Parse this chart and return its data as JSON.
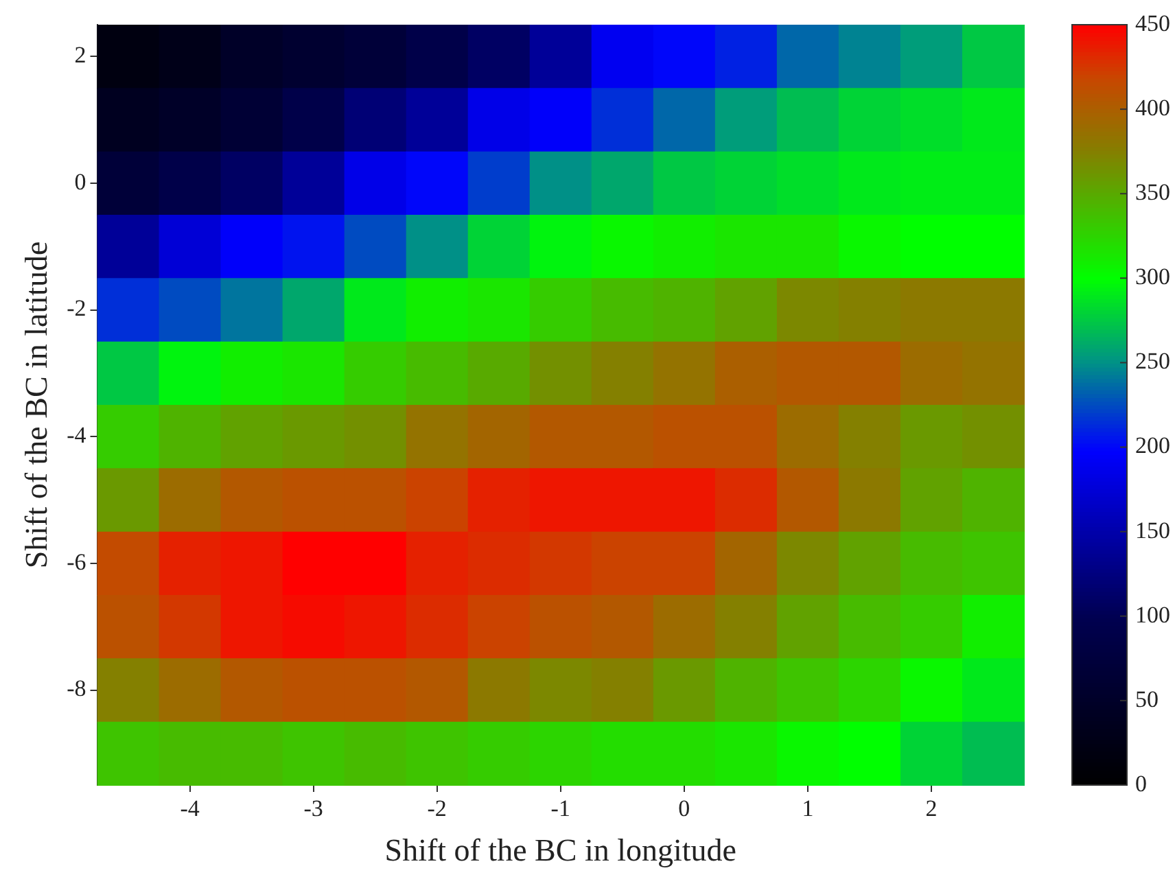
{
  "chart_data": {
    "type": "heatmap",
    "xlabel": "Shift of the BC in longitude",
    "ylabel": "Shift of the BC in latitude",
    "categories": [
      null,
      "-4",
      null,
      "-3",
      null,
      "-2",
      null,
      "-1",
      null,
      "0",
      null,
      "1",
      null,
      "2",
      null
    ],
    "y_categories": [
      "2",
      null,
      "0",
      null,
      "-2",
      null,
      "-4",
      null,
      "-6",
      null,
      "-8",
      null
    ],
    "clim": [
      0,
      450
    ],
    "cticks": [
      0,
      50,
      100,
      150,
      200,
      250,
      300,
      350,
      400,
      450
    ],
    "cells": [
      [
        20,
        30,
        50,
        60,
        70,
        90,
        110,
        140,
        190,
        200,
        210,
        235,
        245,
        255,
        275
      ],
      [
        40,
        50,
        65,
        90,
        120,
        140,
        185,
        195,
        215,
        235,
        255,
        270,
        280,
        285,
        290
      ],
      [
        70,
        90,
        110,
        140,
        185,
        200,
        220,
        250,
        260,
        275,
        280,
        285,
        290,
        292,
        292
      ],
      [
        140,
        175,
        195,
        205,
        225,
        250,
        280,
        295,
        305,
        310,
        315,
        315,
        305,
        300,
        300
      ],
      [
        215,
        225,
        240,
        260,
        290,
        310,
        315,
        330,
        340,
        345,
        355,
        370,
        375,
        380,
        380
      ],
      [
        275,
        295,
        310,
        315,
        330,
        340,
        350,
        365,
        375,
        385,
        400,
        405,
        405,
        390,
        385
      ],
      [
        330,
        345,
        355,
        360,
        365,
        385,
        395,
        405,
        405,
        410,
        410,
        390,
        375,
        360,
        365
      ],
      [
        360,
        390,
        405,
        410,
        410,
        420,
        435,
        440,
        440,
        440,
        430,
        405,
        380,
        355,
        345
      ],
      [
        415,
        435,
        440,
        450,
        450,
        435,
        430,
        425,
        420,
        420,
        395,
        370,
        355,
        340,
        335
      ],
      [
        410,
        425,
        440,
        445,
        440,
        430,
        420,
        410,
        405,
        390,
        375,
        355,
        340,
        330,
        310
      ],
      [
        375,
        390,
        405,
        410,
        410,
        405,
        380,
        370,
        375,
        360,
        345,
        335,
        325,
        305,
        290
      ],
      [
        335,
        340,
        340,
        335,
        340,
        335,
        330,
        325,
        320,
        320,
        315,
        305,
        300,
        280,
        270
      ]
    ]
  }
}
